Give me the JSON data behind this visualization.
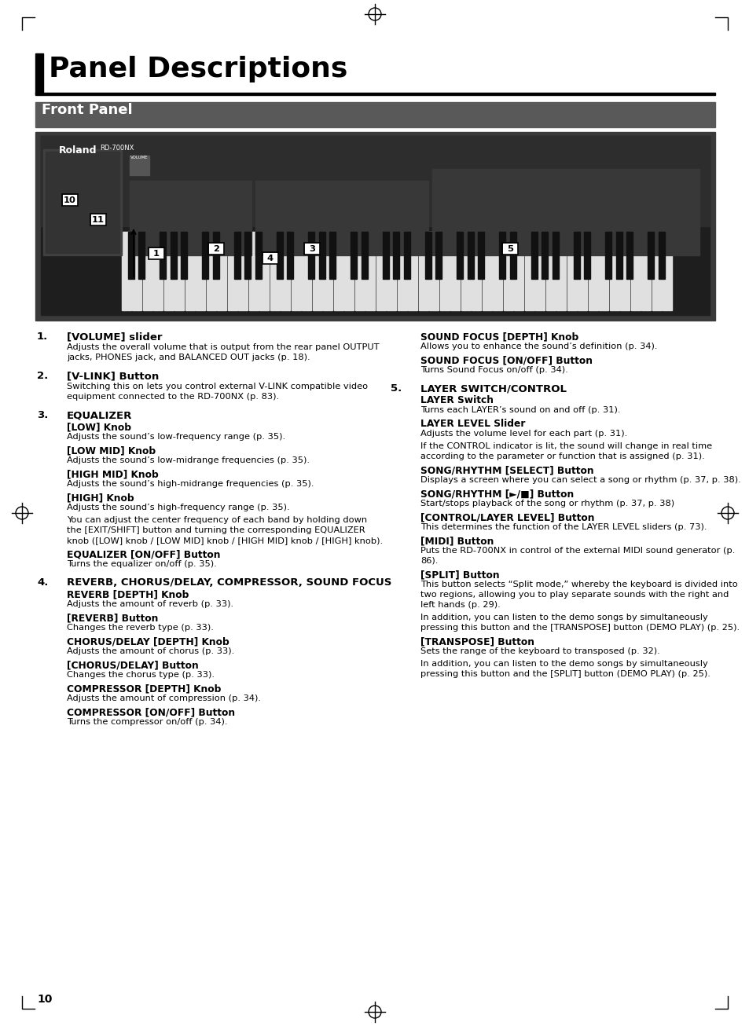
{
  "page_title": "Panel Descriptions",
  "section_title": "Front Panel",
  "page_number": "10",
  "bg_color": "#ffffff",
  "section_bg_color": "#595959",
  "section_text_color": "#ffffff",
  "items_left": [
    {
      "num": "1.",
      "heading": "[VOLUME] slider",
      "subs": [
        {
          "bold": "",
          "text": "Adjusts the overall volume that is output from the rear panel OUTPUT\njacks, PHONES jack, and BALANCED OUT jacks (p. 18)."
        }
      ]
    },
    {
      "num": "2.",
      "heading": "[V-LINK] Button",
      "subs": [
        {
          "bold": "",
          "text": "Switching this on lets you control external V-LINK compatible video\nequipment connected to the RD-700NX (p. 83)."
        }
      ]
    },
    {
      "num": "3.",
      "heading": "EQUALIZER",
      "subs": [
        {
          "bold": "[LOW] Knob",
          "text": "Adjusts the sound’s low-frequency range (p. 35)."
        },
        {
          "bold": "[LOW MID] Knob",
          "text": "Adjusts the sound’s low-midrange frequencies (p. 35)."
        },
        {
          "bold": "[HIGH MID] Knob",
          "text": "Adjusts the sound’s high-midrange frequencies (p. 35)."
        },
        {
          "bold": "[HIGH] Knob",
          "text": "Adjusts the sound’s high-frequency range (p. 35)."
        },
        {
          "bold": "",
          "text": "You can adjust the center frequency of each band by holding down\nthe [EXIT/SHIFT] button and turning the corresponding EQUALIZER\nknob ([LOW] knob / [LOW MID] knob / [HIGH MID] knob / [HIGH] knob)."
        },
        {
          "bold": "EQUALIZER [ON/OFF] Button",
          "text": "Turns the equalizer on/off (p. 35)."
        }
      ]
    },
    {
      "num": "4.",
      "heading": "REVERB, CHORUS/DELAY, COMPRESSOR, SOUND FOCUS",
      "subs": [
        {
          "bold": "REVERB [DEPTH] Knob",
          "text": "Adjusts the amount of reverb (p. 33)."
        },
        {
          "bold": "[REVERB] Button",
          "text": "Changes the reverb type (p. 33)."
        },
        {
          "bold": "CHORUS/DELAY [DEPTH] Knob",
          "text": "Adjusts the amount of chorus (p. 33)."
        },
        {
          "bold": "[CHORUS/DELAY] Button",
          "text": "Changes the chorus type (p. 33)."
        },
        {
          "bold": "COMPRESSOR [DEPTH] Knob",
          "text": "Adjusts the amount of compression (p. 34)."
        },
        {
          "bold": "COMPRESSOR [ON/OFF] Button",
          "text": "Turns the compressor on/off (p. 34)."
        }
      ]
    }
  ],
  "items_right": [
    {
      "num": "",
      "heading": "",
      "subs": [
        {
          "bold": "SOUND FOCUS [DEPTH] Knob",
          "text": "Allows you to enhance the sound’s definition (p. 34)."
        },
        {
          "bold": "SOUND FOCUS [ON/OFF] Button",
          "text": "Turns Sound Focus on/off (p. 34)."
        }
      ]
    },
    {
      "num": "5.",
      "heading": "LAYER SWITCH/CONTROL",
      "subs": [
        {
          "bold": "LAYER Switch",
          "text": "Turns each LAYER’s sound on and off (p. 31)."
        },
        {
          "bold": "LAYER LEVEL Slider",
          "text": "Adjusts the volume level for each part (p. 31)."
        },
        {
          "bold": "",
          "text": "If the CONTROL indicator is lit, the sound will change in real time\naccording to the parameter or function that is assigned (p. 31)."
        },
        {
          "bold": "SONG/RHYTHM [SELECT] Button",
          "text": "Displays a screen where you can select a song or rhythm (p. 37, p. 38)."
        },
        {
          "bold": "SONG/RHYTHM [►/■] Button",
          "text": "Start/stops playback of the song or rhythm (p. 37, p. 38)"
        },
        {
          "bold": "[CONTROL/LAYER LEVEL] Button",
          "text": "This determines the function of the LAYER LEVEL sliders (p. 73)."
        },
        {
          "bold": "[MIDI] Button",
          "text": "Puts the RD-700NX in control of the external MIDI sound generator (p.\n86)."
        },
        {
          "bold": "[SPLIT] Button",
          "text": "This button selects “Split mode,” whereby the keyboard is divided into\ntwo regions, allowing you to play separate sounds with the right and\nleft hands (p. 29)."
        },
        {
          "bold": "",
          "text": "In addition, you can listen to the demo songs by simultaneously\npressing this button and the [TRANSPOSE] button (DEMO PLAY) (p. 25)."
        },
        {
          "bold": "[TRANSPOSE] Button",
          "text": "Sets the range of the keyboard to transposed (p. 32)."
        },
        {
          "bold": "",
          "text": "In addition, you can listen to the demo songs by simultaneously\npressing this button and the [SPLIT] button (DEMO PLAY) (p. 25)."
        }
      ]
    }
  ]
}
